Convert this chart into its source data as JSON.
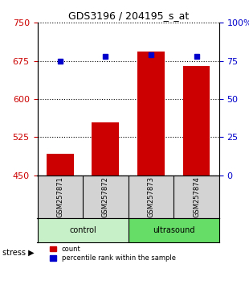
{
  "title": "GDS3196 / 204195_s_at",
  "samples": [
    "GSM257871",
    "GSM257872",
    "GSM257873",
    "GSM257874"
  ],
  "counts": [
    492,
    555,
    693,
    665
  ],
  "percentiles": [
    75,
    78,
    79,
    78
  ],
  "groups": [
    "control",
    "control",
    "ultrasound",
    "ultrasound"
  ],
  "ylim_left": [
    450,
    750
  ],
  "ylim_right": [
    0,
    100
  ],
  "yticks_left": [
    450,
    525,
    600,
    675,
    750
  ],
  "yticks_right": [
    0,
    25,
    50,
    75,
    100
  ],
  "bar_color": "#cc0000",
  "dot_color": "#0000cc",
  "group_colors": {
    "control": "#c8f0c8",
    "ultrasound": "#66dd66"
  },
  "grid_color": "#000000",
  "bg_color": "#ffffff",
  "plot_bg": "#ffffff",
  "left_axis_color": "#cc0000",
  "right_axis_color": "#0000cc",
  "bar_width": 0.6,
  "base_value": 450
}
